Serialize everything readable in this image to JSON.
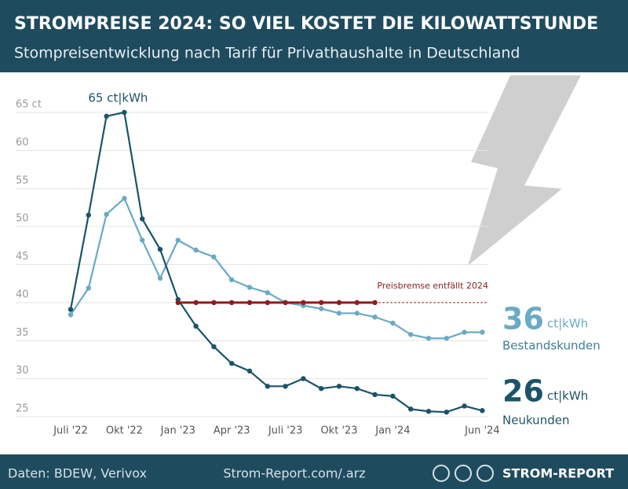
{
  "chart_data": {
    "type": "line",
    "title": "STROMPREISE 2024: SO VIEL KOSTET DIE KILOWATTSTUNDE",
    "subtitle": "Stompreisentwicklung nach Tarif für Privathaushalte in Deutschland",
    "categories": [
      "Juli '22",
      null,
      null,
      "Okt '22",
      null,
      null,
      "Jan '23",
      null,
      null,
      "Apr '23",
      null,
      null,
      "Juli '23",
      null,
      null,
      "Okt '23",
      null,
      null,
      "Jan '24",
      null,
      null,
      null,
      null,
      "Jun '24"
    ],
    "ylim": [
      25,
      65
    ],
    "yticks": [
      25,
      30,
      35,
      40,
      45,
      50,
      55,
      60,
      {
        "value": 65,
        "label": "65 ct"
      }
    ],
    "grid": true,
    "annotation": "65 ct|kWh",
    "series": [
      {
        "name": "Bestandskunden",
        "color": "#6aaac4",
        "end_value": 36,
        "end_unit": "ct|kWh",
        "values": [
          38.4,
          41.9,
          51.6,
          53.7,
          48.2,
          43.2,
          48.2,
          46.9,
          46,
          43,
          42,
          41.3,
          40,
          39.6,
          39.2,
          38.6,
          38.6,
          38.1,
          37.3,
          35.8,
          35.3,
          35.3,
          36.1,
          36.1
        ]
      },
      {
        "name": "Neukunden",
        "color": "#1b5468",
        "end_value": 26,
        "end_unit": "ct|kWh",
        "values": [
          39.1,
          51.5,
          64.5,
          65,
          51,
          47,
          40.4,
          36.9,
          34.2,
          32,
          31,
          29,
          29,
          30,
          28.7,
          29,
          28.7,
          27.9,
          27.7,
          26,
          25.7,
          25.6,
          26.4,
          25.8
        ]
      },
      {
        "name": "Preisbremse entfällt 2024",
        "color": "#8e1c1c",
        "values": [
          null,
          null,
          null,
          null,
          null,
          null,
          40,
          40,
          40,
          40,
          40,
          40,
          40,
          40,
          40,
          40,
          40,
          40,
          null,
          null,
          null,
          null,
          null,
          null
        ]
      }
    ],
    "source": "Daten: BDEW, Verivox",
    "website": "Strom-Report.com/.arz",
    "brand": "STROM-REPORT"
  }
}
